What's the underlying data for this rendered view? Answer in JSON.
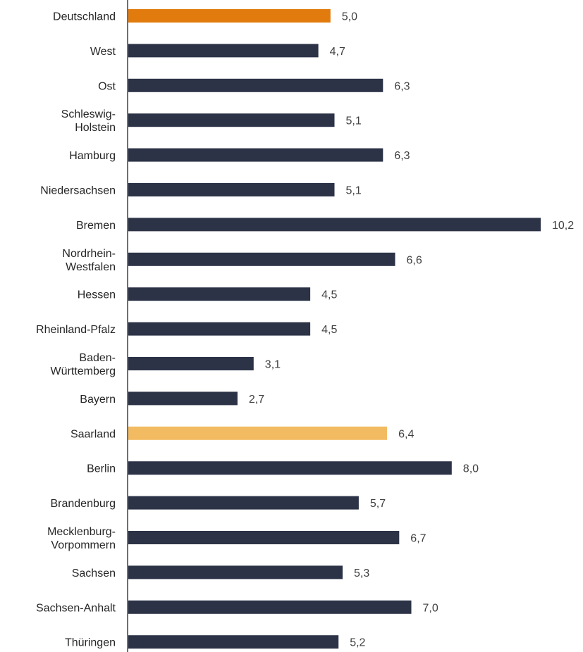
{
  "chart_data": {
    "type": "bar",
    "orientation": "horizontal",
    "categories": [
      [
        "Deutschland"
      ],
      [
        "West"
      ],
      [
        "Ost"
      ],
      [
        "Schleswig-",
        "Holstein"
      ],
      [
        "Hamburg"
      ],
      [
        "Niedersachsen"
      ],
      [
        "Bremen"
      ],
      [
        "Nordrhein-",
        "Westfalen"
      ],
      [
        "Hessen"
      ],
      [
        "Rheinland-Pfalz"
      ],
      [
        "Baden-",
        "Württemberg"
      ],
      [
        "Bayern"
      ],
      [
        "Saarland"
      ],
      [
        "Berlin"
      ],
      [
        "Brandenburg"
      ],
      [
        "Mecklenburg-",
        "Vorpommern"
      ],
      [
        "Sachsen"
      ],
      [
        "Sachsen-Anhalt"
      ],
      [
        "Thüringen"
      ]
    ],
    "values": [
      5.0,
      4.7,
      6.3,
      5.1,
      6.3,
      5.1,
      10.2,
      6.6,
      4.5,
      4.5,
      3.1,
      2.7,
      6.4,
      8.0,
      5.7,
      6.7,
      5.3,
      7.0,
      5.2
    ],
    "value_labels": [
      "5,0",
      "4,7",
      "6,3",
      "5,1",
      "6,3",
      "5,1",
      "10,2",
      "6,6",
      "4,5",
      "4,5",
      "3,1",
      "2,7",
      "6,4",
      "8,0",
      "5,7",
      "6,7",
      "5,3",
      "7,0",
      "5,2"
    ],
    "xlim": [
      0,
      10.2
    ],
    "grid": false,
    "colors": {
      "default": "#2c3347",
      "Deutschland": "#e27b0e",
      "Saarland": "#f2bb62",
      "axis": "#404040"
    }
  }
}
